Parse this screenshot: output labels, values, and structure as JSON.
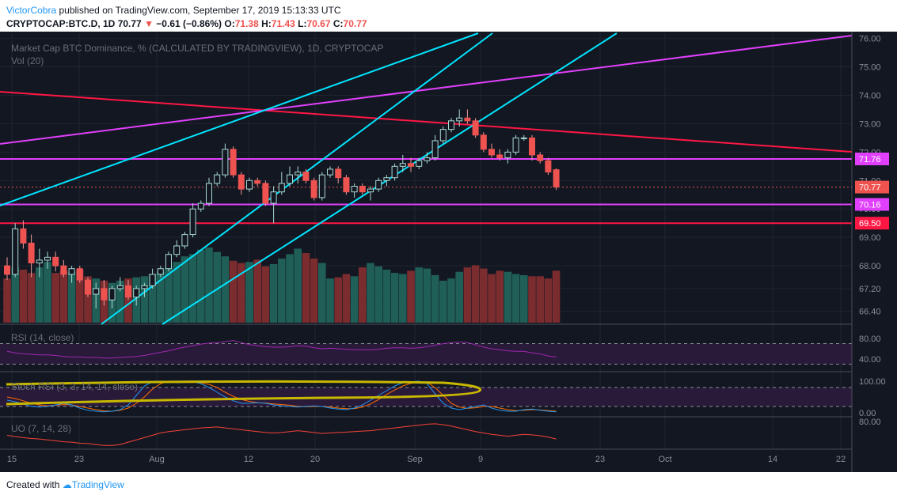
{
  "header": {
    "user": "VictorCobra",
    "published": "published on TradingView.com, September 17, 2019 15:13:33 UTC"
  },
  "ticker": {
    "symbol": "CRYPTOCAP:BTC.D, 1D",
    "last": "70.77",
    "change": "−0.61 (−0.86%)",
    "o_label": "O:",
    "o": "71.38",
    "h_label": "H:",
    "h": "71.43",
    "l_label": "L:",
    "l": "70.67",
    "c_label": "C:",
    "c": "70.77"
  },
  "footer": {
    "created": "Created with",
    "brand": "TradingView"
  },
  "colors": {
    "background": "#131722",
    "up": "#26a69a",
    "down": "#ef5350",
    "cyan": "#00e5ff",
    "magenta": "#e040fb",
    "red": "#ff1744",
    "rsi": "#9c27b0",
    "stoch_k": "#2196f3",
    "stoch_d": "#ff6d00",
    "uo": "#f44336",
    "ellipse": "#c9b800"
  },
  "chart_data": {
    "type": "candlestick",
    "title": "Market Cap BTC Dominance, % (CALCULATED BY TRADINGVIEW), 1D, CRYPTOCAP",
    "volume_label": "Vol (20)",
    "price_axis": {
      "ylim": [
        66.0,
        76.1
      ],
      "ticks": [
        "76.00",
        "75.00",
        "74.00",
        "73.00",
        "72.00",
        "71.00",
        "70.00",
        "69.00",
        "68.00",
        "67.20",
        "66.40"
      ]
    },
    "price_labels": [
      {
        "text": "71.76",
        "value": 71.76,
        "color": "#e040fb"
      },
      {
        "text": "70.77",
        "value": 70.77,
        "color": "#ef5350"
      },
      {
        "text": "70.16",
        "value": 70.16,
        "color": "#e040fb"
      },
      {
        "text": "69.50",
        "value": 69.5,
        "color": "#ff1744"
      }
    ],
    "x_ticks": [
      "15",
      "23",
      "Aug",
      "12",
      "20",
      "Sep",
      "9",
      "23",
      "Oct",
      "14",
      "22"
    ],
    "candles": [
      [
        68.0,
        68.3,
        67.5,
        67.7
      ],
      [
        67.7,
        69.5,
        67.6,
        69.3
      ],
      [
        69.3,
        69.6,
        68.6,
        68.8
      ],
      [
        68.8,
        69.1,
        67.6,
        68.1
      ],
      [
        68.1,
        68.6,
        67.6,
        68.2
      ],
      [
        68.2,
        68.5,
        67.9,
        68.3
      ],
      [
        68.3,
        68.5,
        67.8,
        68.0
      ],
      [
        68.0,
        68.2,
        67.6,
        67.7
      ],
      [
        67.7,
        68.0,
        67.4,
        67.9
      ],
      [
        67.9,
        68.0,
        67.4,
        67.5
      ],
      [
        67.5,
        67.6,
        66.9,
        67.0
      ],
      [
        67.0,
        67.4,
        66.5,
        67.2
      ],
      [
        67.2,
        67.5,
        66.6,
        66.8
      ],
      [
        66.8,
        67.3,
        66.5,
        67.2
      ],
      [
        67.2,
        67.6,
        67.1,
        67.3
      ],
      [
        67.3,
        67.5,
        66.8,
        66.9
      ],
      [
        66.9,
        67.3,
        66.6,
        67.2
      ],
      [
        67.2,
        67.4,
        66.9,
        67.3
      ],
      [
        67.3,
        67.9,
        67.2,
        67.7
      ],
      [
        67.7,
        68.0,
        67.6,
        67.9
      ],
      [
        67.9,
        68.5,
        67.8,
        68.4
      ],
      [
        68.4,
        68.9,
        68.3,
        68.7
      ],
      [
        68.7,
        69.2,
        68.6,
        69.1
      ],
      [
        69.1,
        70.2,
        69.0,
        70.0
      ],
      [
        70.0,
        70.3,
        69.9,
        70.2
      ],
      [
        70.2,
        71.1,
        70.1,
        70.9
      ],
      [
        70.9,
        71.3,
        70.8,
        71.2
      ],
      [
        71.2,
        72.3,
        71.1,
        72.1
      ],
      [
        72.1,
        72.2,
        71.1,
        71.2
      ],
      [
        71.2,
        71.3,
        70.5,
        70.7
      ],
      [
        70.7,
        71.1,
        70.6,
        71.0
      ],
      [
        71.0,
        71.1,
        70.8,
        70.9
      ],
      [
        70.9,
        71.0,
        70.1,
        70.2
      ],
      [
        70.2,
        70.8,
        69.5,
        70.6
      ],
      [
        70.6,
        71.3,
        70.5,
        70.9
      ],
      [
        70.9,
        71.5,
        70.8,
        71.2
      ],
      [
        71.2,
        71.5,
        70.9,
        71.3
      ],
      [
        71.3,
        71.4,
        70.9,
        71.0
      ],
      [
        71.0,
        71.1,
        70.3,
        70.4
      ],
      [
        70.4,
        71.3,
        70.3,
        71.2
      ],
      [
        71.2,
        71.5,
        71.1,
        71.4
      ],
      [
        71.4,
        71.5,
        70.9,
        71.1
      ],
      [
        71.1,
        71.2,
        70.5,
        70.6
      ],
      [
        70.6,
        70.9,
        70.4,
        70.8
      ],
      [
        70.8,
        70.9,
        70.5,
        70.6
      ],
      [
        70.6,
        70.8,
        70.3,
        70.7
      ],
      [
        70.7,
        71.1,
        70.6,
        71.0
      ],
      [
        71.0,
        71.2,
        70.8,
        71.1
      ],
      [
        71.1,
        71.6,
        71.0,
        71.5
      ],
      [
        71.5,
        71.9,
        71.3,
        71.6
      ],
      [
        71.6,
        71.8,
        71.3,
        71.5
      ],
      [
        71.5,
        71.8,
        71.4,
        71.7
      ],
      [
        71.7,
        72.0,
        71.6,
        71.8
      ],
      [
        71.8,
        72.6,
        71.7,
        72.4
      ],
      [
        72.4,
        72.9,
        72.3,
        72.8
      ],
      [
        72.8,
        73.2,
        72.7,
        73.1
      ],
      [
        73.1,
        73.5,
        72.9,
        73.2
      ],
      [
        73.2,
        73.5,
        73.0,
        73.1
      ],
      [
        73.1,
        73.2,
        72.5,
        72.6
      ],
      [
        72.6,
        72.7,
        72.0,
        72.1
      ],
      [
        72.1,
        72.3,
        71.8,
        71.9
      ],
      [
        71.9,
        72.1,
        71.7,
        71.8
      ],
      [
        71.8,
        72.1,
        71.6,
        72.0
      ],
      [
        72.0,
        72.6,
        71.9,
        72.5
      ],
      [
        72.5,
        72.6,
        72.4,
        72.5
      ],
      [
        72.5,
        72.6,
        71.7,
        71.9
      ],
      [
        71.9,
        72.0,
        71.6,
        71.7
      ],
      [
        71.7,
        71.8,
        71.2,
        71.3
      ],
      [
        71.38,
        71.43,
        70.67,
        70.77
      ]
    ],
    "volumes": [
      0.4,
      0.5,
      0.48,
      0.45,
      0.5,
      0.55,
      0.45,
      0.47,
      0.46,
      0.48,
      0.42,
      0.4,
      0.38,
      0.36,
      0.38,
      0.4,
      0.41,
      0.42,
      0.44,
      0.46,
      0.5,
      0.55,
      0.6,
      0.62,
      0.66,
      0.68,
      0.64,
      0.6,
      0.56,
      0.54,
      0.55,
      0.57,
      0.51,
      0.53,
      0.58,
      0.62,
      0.67,
      0.63,
      0.58,
      0.54,
      0.4,
      0.41,
      0.44,
      0.42,
      0.5,
      0.54,
      0.51,
      0.48,
      0.45,
      0.44,
      0.47,
      0.5,
      0.49,
      0.43,
      0.38,
      0.4,
      0.46,
      0.5,
      0.52,
      0.49,
      0.44,
      0.47,
      0.46,
      0.44,
      0.43,
      0.42,
      0.42,
      0.4,
      0.47
    ],
    "rsi": {
      "label": "RSI (14, close)",
      "ticks": [
        "80.00",
        "40.00"
      ],
      "values": [
        55,
        52,
        50,
        49,
        48,
        48,
        47,
        45,
        44,
        44,
        43,
        43,
        42,
        42,
        43,
        44,
        45,
        47,
        50,
        53,
        56,
        60,
        63,
        66,
        69,
        71,
        72,
        74,
        76,
        72,
        68,
        66,
        64,
        63,
        63,
        64,
        66,
        65,
        62,
        60,
        61,
        60,
        59,
        58,
        58,
        58,
        59,
        61,
        62,
        62,
        61,
        62,
        64,
        67,
        70,
        72,
        73,
        72,
        68,
        63,
        60,
        58,
        56,
        55,
        55,
        52,
        50,
        46,
        44
      ]
    },
    "stoch_rsi": {
      "label": "Stoch RSI (3, 3, 14, 14, close)",
      "ticks": [
        "100.00",
        "0.00"
      ],
      "k": [
        40,
        35,
        28,
        20,
        18,
        20,
        25,
        30,
        25,
        15,
        8,
        5,
        3,
        5,
        10,
        25,
        55,
        85,
        98,
        100,
        98,
        95,
        96,
        98,
        92,
        80,
        65,
        50,
        38,
        30,
        30,
        32,
        30,
        25,
        22,
        20,
        18,
        20,
        22,
        20,
        15,
        12,
        10,
        15,
        25,
        40,
        55,
        70,
        85,
        95,
        98,
        100,
        92,
        60,
        30,
        15,
        10,
        15,
        20,
        25,
        15,
        8,
        5,
        5,
        10,
        12,
        8,
        5,
        3
      ],
      "d": [
        50,
        45,
        38,
        30,
        25,
        22,
        24,
        26,
        25,
        20,
        15,
        10,
        6,
        5,
        8,
        15,
        30,
        50,
        75,
        92,
        100,
        98,
        96,
        96,
        95,
        90,
        80,
        65,
        52,
        42,
        36,
        32,
        31,
        28,
        26,
        24,
        20,
        19,
        20,
        20,
        18,
        15,
        13,
        13,
        18,
        28,
        42,
        58,
        72,
        85,
        93,
        98,
        96,
        80,
        55,
        30,
        18,
        14,
        16,
        20,
        20,
        15,
        10,
        7,
        8,
        10,
        9,
        7,
        5
      ]
    },
    "uo": {
      "label": "UO (7, 14, 28)",
      "ticks": [
        "80.00"
      ],
      "values": [
        50,
        47,
        45,
        43,
        42,
        40,
        38,
        36,
        35,
        33,
        32,
        30,
        28,
        28,
        30,
        35,
        40,
        45,
        50,
        55,
        58,
        60,
        62,
        64,
        66,
        67,
        68,
        66,
        64,
        62,
        60,
        58,
        56,
        55,
        56,
        58,
        60,
        58,
        56,
        54,
        55,
        56,
        57,
        58,
        59,
        60,
        62,
        64,
        66,
        68,
        70,
        72,
        74,
        75,
        73,
        70,
        66,
        62,
        58,
        55,
        52,
        50,
        48,
        50,
        52,
        51,
        49,
        46,
        42
      ]
    }
  }
}
